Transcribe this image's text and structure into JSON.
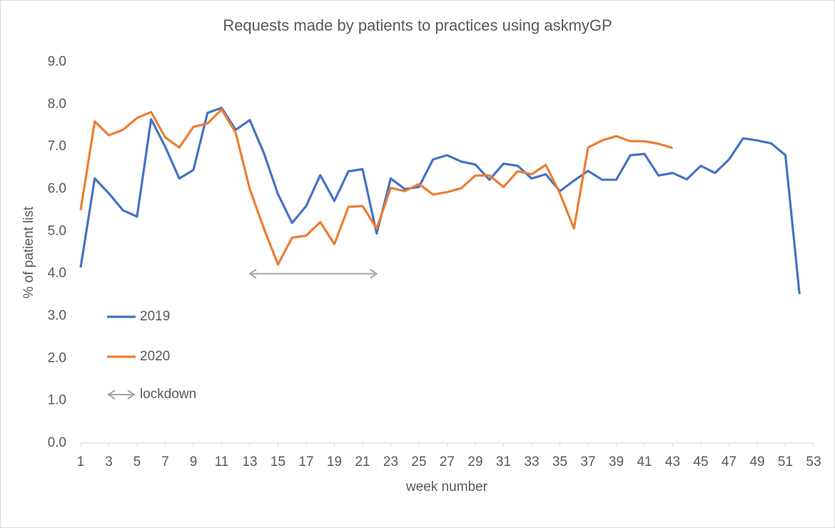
{
  "chart_data": {
    "type": "line",
    "title": "Requests made by patients to practices using askmyGP",
    "x_label": "week number",
    "y_label": "% of patient list",
    "x": [
      1,
      2,
      3,
      4,
      5,
      6,
      7,
      8,
      9,
      10,
      11,
      12,
      13,
      14,
      15,
      16,
      17,
      18,
      19,
      20,
      21,
      22,
      23,
      24,
      25,
      26,
      27,
      28,
      29,
      30,
      31,
      32,
      33,
      34,
      35,
      36,
      37,
      38,
      39,
      40,
      41,
      42,
      43,
      44,
      45,
      46,
      47,
      48,
      49,
      50,
      51,
      52
    ],
    "series": [
      {
        "name": "2019",
        "color": "#4472c4",
        "values": [
          4.15,
          6.25,
          5.9,
          5.5,
          5.35,
          7.65,
          7.0,
          6.25,
          6.45,
          7.8,
          7.92,
          7.4,
          7.63,
          6.85,
          5.88,
          5.2,
          5.6,
          6.33,
          5.72,
          6.42,
          6.47,
          4.95,
          6.25,
          6.0,
          6.05,
          6.7,
          6.8,
          6.65,
          6.58,
          6.22,
          6.6,
          6.55,
          6.25,
          6.35,
          5.95,
          6.2,
          6.43,
          6.22,
          6.22,
          6.8,
          6.83,
          6.32,
          6.38,
          6.23,
          6.55,
          6.38,
          6.7,
          7.2,
          7.15,
          7.08,
          6.8,
          3.52
        ]
      },
      {
        "name": "2020",
        "color": "#ed7d31",
        "values": [
          5.5,
          7.6,
          7.27,
          7.4,
          7.68,
          7.82,
          7.22,
          6.98,
          7.47,
          7.55,
          7.88,
          7.33,
          6.0,
          5.07,
          4.22,
          4.85,
          4.9,
          5.22,
          4.7,
          5.58,
          5.6,
          5.07,
          6.03,
          5.95,
          6.12,
          5.87,
          5.93,
          6.02,
          6.32,
          6.32,
          6.05,
          6.42,
          6.35,
          6.57,
          5.9,
          5.07,
          6.98,
          7.15,
          7.25,
          7.13,
          7.13,
          7.07,
          6.97,
          null,
          null,
          null,
          null,
          null,
          null,
          null,
          null,
          null
        ]
      }
    ],
    "annotation": {
      "text": "lockdown",
      "x": [
        13,
        22
      ],
      "y": 4.0,
      "color": "#a5a5a5"
    },
    "xlim": [
      1,
      53
    ],
    "xticks": [
      1,
      3,
      5,
      7,
      9,
      11,
      13,
      15,
      17,
      19,
      21,
      23,
      25,
      27,
      29,
      31,
      33,
      35,
      37,
      39,
      41,
      43,
      45,
      47,
      49,
      51,
      53
    ],
    "ylim": [
      0,
      9
    ],
    "yticks": [
      {
        "value": 0,
        "label": "0.0"
      },
      {
        "value": 1,
        "label": "1.0"
      },
      {
        "value": 2,
        "label": "2.0"
      },
      {
        "value": 3,
        "label": "3.0"
      },
      {
        "value": 4,
        "label": "4.0"
      },
      {
        "value": 5,
        "label": "5.0"
      },
      {
        "value": 6,
        "label": "6.0"
      },
      {
        "value": 7,
        "label": "7.0"
      },
      {
        "value": 8,
        "label": "8.0"
      },
      {
        "value": 9,
        "label": "9.0"
      }
    ],
    "grid": false,
    "legend": "left"
  }
}
